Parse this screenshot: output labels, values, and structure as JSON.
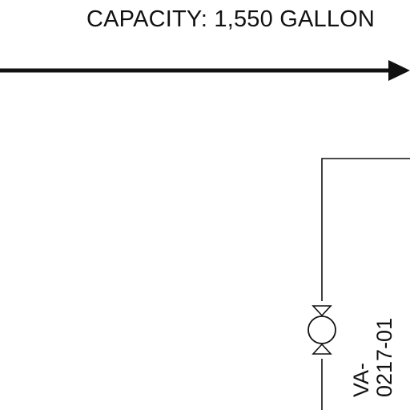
{
  "diagram": {
    "capacity_label": "CAPACITY: 1,550 GALLON",
    "valve": {
      "tag_line1": "VA-",
      "tag_line2": "0217-01",
      "icon": "gate-valve-icon"
    },
    "colors": {
      "line": "#111111",
      "background": "#ffffff"
    }
  }
}
